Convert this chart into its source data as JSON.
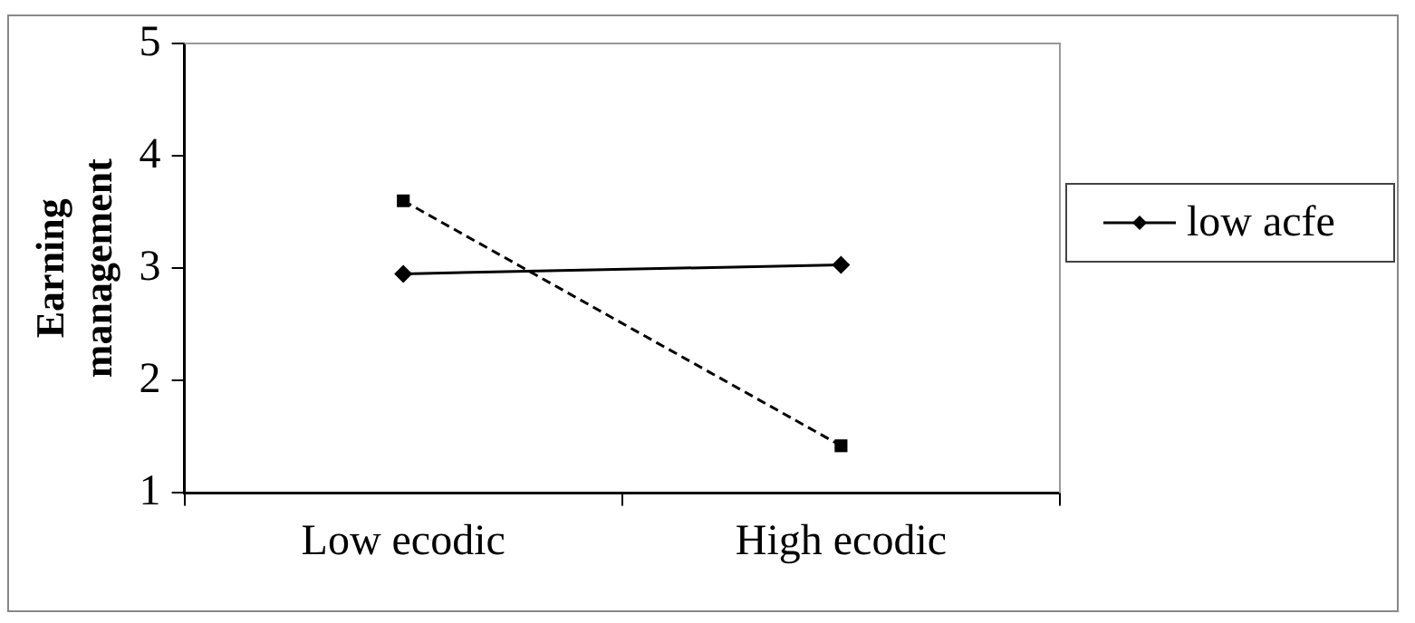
{
  "chart_data": {
    "type": "line",
    "ylabel": "Earning management",
    "categories": [
      "Low ecodic",
      "High ecodic"
    ],
    "series": [
      {
        "name": "low acfe",
        "color": "#000000",
        "values": [
          2.95,
          3.03
        ],
        "marker": "diamond",
        "line_style": "solid"
      },
      {
        "color": "#000000",
        "values": [
          3.6,
          1.42
        ],
        "marker": "square",
        "line_style": "dashed"
      }
    ],
    "ylim": [
      1,
      5
    ],
    "yticks": [
      1,
      2,
      3,
      4,
      5
    ],
    "grid": false,
    "legend": "right"
  }
}
